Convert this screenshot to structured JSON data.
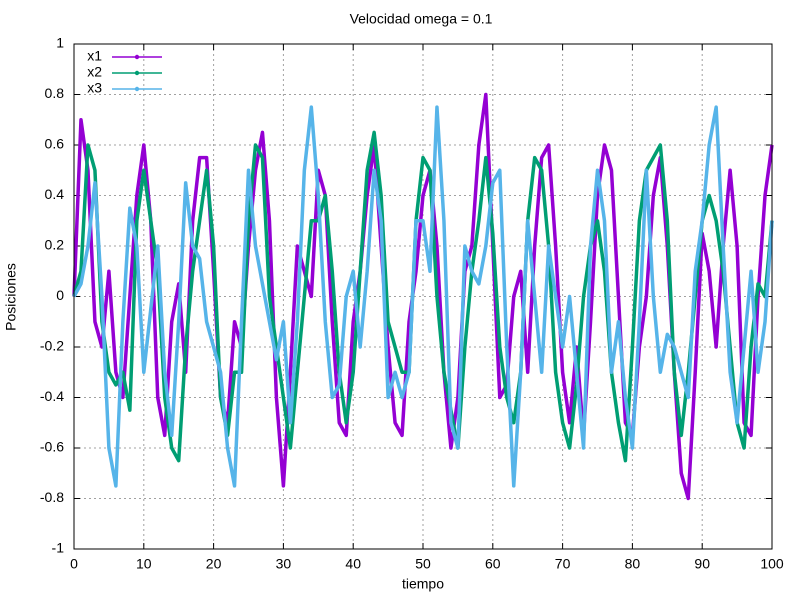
{
  "chart_data": {
    "type": "line",
    "title": "Velocidad omega = 0.1",
    "x_label": "tiempo",
    "y_label": "Posiciones",
    "xlim": [
      0,
      100
    ],
    "xticks": [
      0,
      10,
      20,
      30,
      40,
      50,
      60,
      70,
      80,
      90,
      100
    ],
    "ylim": [
      -1,
      1
    ],
    "yticks": [
      -1,
      -0.8,
      -0.6,
      -0.4,
      -0.2,
      0,
      0.2,
      0.4,
      0.6,
      0.8,
      1
    ],
    "grid": true,
    "legend": "top-left",
    "x": [
      0,
      1,
      2,
      3,
      4,
      5,
      6,
      7,
      8,
      9,
      10,
      11,
      12,
      13,
      14,
      15,
      16,
      17,
      18,
      19,
      20,
      21,
      22,
      23,
      24,
      25,
      26,
      27,
      28,
      29,
      30,
      31,
      32,
      33,
      34,
      35,
      36,
      37,
      38,
      39,
      40,
      41,
      42,
      43,
      44,
      45,
      46,
      47,
      48,
      49,
      50,
      51,
      52,
      53,
      54,
      55,
      56,
      57,
      58,
      59,
      60,
      61,
      62,
      63,
      64,
      65,
      66,
      67,
      68,
      69,
      70,
      71,
      72,
      73,
      74,
      75,
      76,
      77,
      78,
      79,
      80,
      81,
      82,
      83,
      84,
      85,
      86,
      87,
      88,
      89,
      90,
      91,
      92,
      93,
      94,
      95,
      96,
      97,
      98,
      99,
      100
    ],
    "series": [
      {
        "name": "x1",
        "color": "#9400d3",
        "values": [
          0,
          0.7,
          0.5,
          -0.1,
          -0.2,
          0.1,
          -0.3,
          -0.4,
          0,
          0.4,
          0.6,
          0.3,
          -0.4,
          -0.55,
          -0.1,
          0.05,
          -0.3,
          0.3,
          0.55,
          0.55,
          0.1,
          -0.4,
          -0.5,
          -0.1,
          -0.2,
          0.2,
          0.5,
          0.65,
          0.3,
          -0.4,
          -0.75,
          -0.3,
          0.2,
          0.1,
          0,
          0.5,
          0.4,
          -0.1,
          -0.5,
          -0.55,
          -0.1,
          0.1,
          0.4,
          0.6,
          0.2,
          -0.2,
          -0.5,
          -0.55,
          -0.1,
          0.1,
          0.4,
          0.5,
          0.2,
          -0.3,
          -0.6,
          -0.4,
          0.1,
          0.2,
          0.6,
          0.8,
          0.2,
          -0.4,
          -0.35,
          0,
          0.1,
          -0.3,
          0.2,
          0.55,
          0.6,
          0.2,
          -0.3,
          -0.5,
          -0.2,
          -0.55,
          -0.1,
          0.4,
          0.6,
          0.5,
          0,
          -0.5,
          -0.55,
          -0.2,
          0,
          0.4,
          0.55,
          0.2,
          -0.3,
          -0.7,
          -0.8,
          -0.3,
          0.25,
          0.1,
          -0.2,
          0.2,
          0.5,
          0.2,
          -0.5,
          -0.55,
          0,
          0.4,
          0.6
        ]
      },
      {
        "name": "x2",
        "color": "#009e73",
        "values": [
          0,
          0.1,
          0.6,
          0.5,
          -0.1,
          -0.3,
          -0.35,
          -0.3,
          -0.45,
          0.3,
          0.5,
          0.3,
          0.1,
          -0.4,
          -0.6,
          -0.65,
          -0.2,
          0.1,
          0.3,
          0.5,
          0.2,
          -0.4,
          -0.55,
          -0.3,
          -0.3,
          0.3,
          0.6,
          0.55,
          0,
          -0.2,
          -0.4,
          -0.6,
          -0.3,
          0,
          0.3,
          0.3,
          0.4,
          0.1,
          -0.3,
          -0.5,
          -0.3,
          0.1,
          0.5,
          0.65,
          0.4,
          -0.1,
          -0.2,
          -0.3,
          -0.3,
          0.3,
          0.55,
          0.5,
          0,
          -0.3,
          -0.45,
          -0.6,
          -0.2,
          0.1,
          0.3,
          0.55,
          0.25,
          -0.2,
          -0.4,
          -0.5,
          -0.3,
          0.3,
          0.55,
          0.5,
          0.2,
          -0.3,
          -0.5,
          -0.6,
          -0.35,
          0,
          0.2,
          0.3,
          0.1,
          -0.3,
          -0.5,
          -0.65,
          -0.2,
          0.3,
          0.5,
          0.55,
          0.6,
          0.3,
          -0.3,
          -0.55,
          -0.3,
          0,
          0.3,
          0.4,
          0.3,
          0.1,
          -0.2,
          -0.5,
          -0.6,
          -0.2,
          0.05,
          0,
          0.3
        ]
      },
      {
        "name": "x3",
        "color": "#56b4e9",
        "values": [
          0,
          0.05,
          0.2,
          0.45,
          0,
          -0.6,
          -0.75,
          -0.1,
          0.35,
          0.2,
          -0.3,
          -0.05,
          0.2,
          -0.3,
          -0.55,
          -0.1,
          0.45,
          0.2,
          0.15,
          -0.1,
          -0.2,
          -0.3,
          -0.6,
          -0.75,
          -0.1,
          0.5,
          0.2,
          0.05,
          -0.1,
          -0.25,
          -0.1,
          -0.5,
          -0.1,
          0.5,
          0.75,
          0.4,
          -0.1,
          -0.4,
          -0.35,
          0,
          0.1,
          -0.2,
          0.1,
          0.5,
          0.3,
          -0.4,
          -0.3,
          -0.4,
          -0.3,
          0.3,
          0.3,
          0.1,
          0.75,
          0.3,
          -0.5,
          -0.6,
          0.2,
          0.1,
          0.05,
          0.2,
          0.45,
          0.5,
          -0.2,
          -0.75,
          -0.3,
          0.3,
          0,
          -0.3,
          0.2,
          0,
          -0.2,
          0,
          -0.3,
          -0.6,
          0.2,
          0.5,
          0.3,
          -0.3,
          -0.1,
          -0.4,
          -0.6,
          -0.1,
          0.5,
          0,
          -0.3,
          -0.15,
          -0.2,
          -0.3,
          -0.4,
          0.1,
          0.3,
          0.6,
          0.75,
          0.2,
          -0.3,
          -0.5,
          -0.2,
          0.1,
          -0.3,
          -0.1,
          0.3
        ]
      }
    ]
  }
}
